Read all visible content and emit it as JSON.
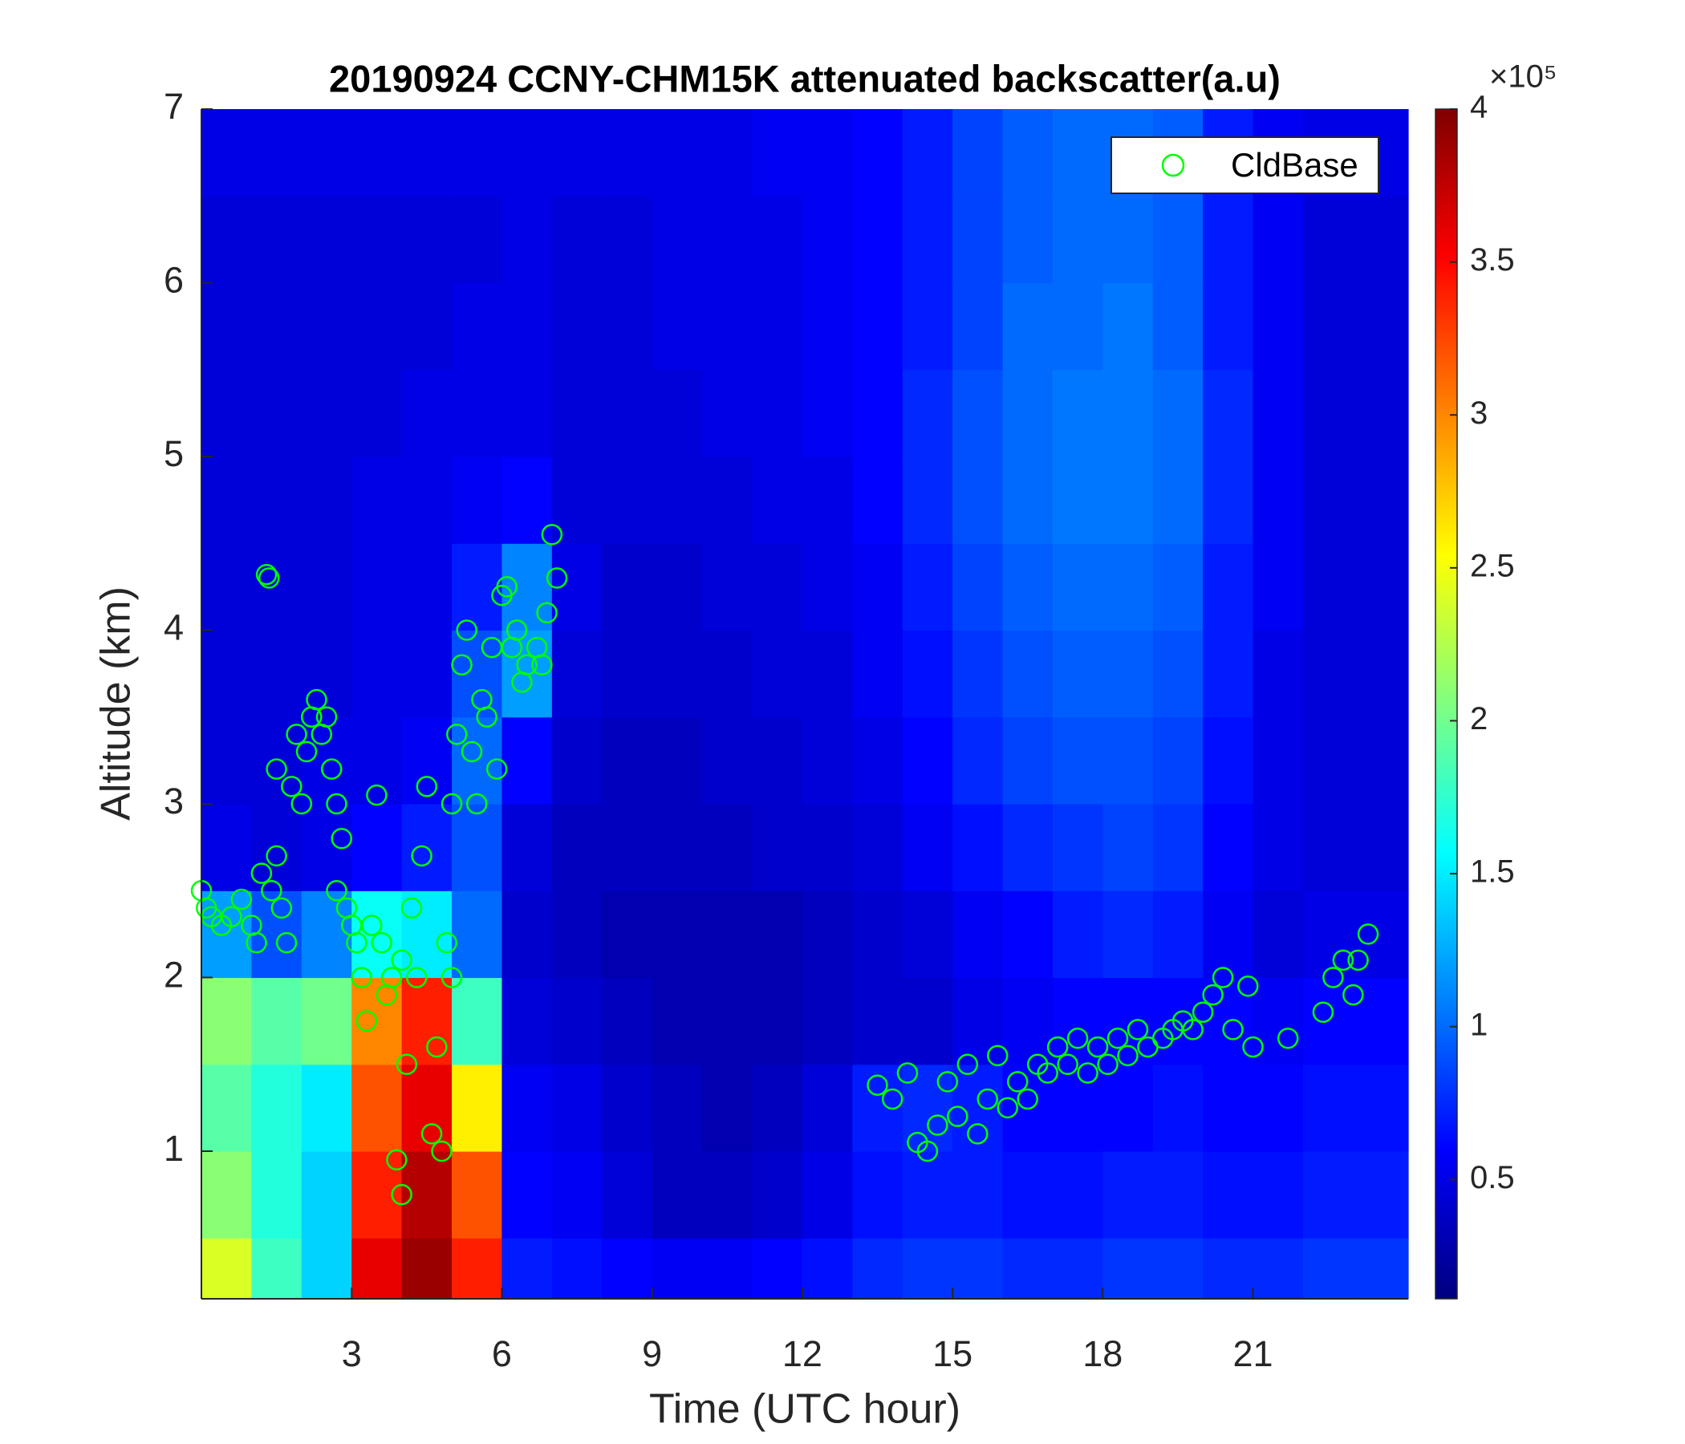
{
  "chart_data": {
    "type": "heatmap",
    "title": "20190924 CCNY-CHM15K attenuated backscatter(a.u)",
    "x_label": "Time (UTC hour)",
    "y_label": "Altitude (km)",
    "xlim": [
      0,
      24.1
    ],
    "ylim": [
      0.15,
      7
    ],
    "xticks": [
      3,
      6,
      9,
      12,
      15,
      18,
      21
    ],
    "yticks": [
      1,
      2,
      3,
      4,
      5,
      6,
      7
    ],
    "heatmap": {
      "x_bins": [
        0,
        1,
        2,
        3,
        4,
        5,
        6,
        7,
        8,
        9,
        10,
        11,
        12,
        13,
        14,
        15,
        16,
        17,
        18,
        19,
        20,
        21,
        22,
        23,
        24.1
      ],
      "y_bins": [
        0.15,
        0.5,
        1,
        1.5,
        2,
        2.5,
        3,
        3.5,
        4,
        4.5,
        5,
        5.5,
        6,
        6.5,
        7
      ],
      "values": [
        [
          2.4,
          1.8,
          1.4,
          3.6,
          3.9,
          3.4,
          0.7,
          0.65,
          0.6,
          0.55,
          0.55,
          0.6,
          0.65,
          0.75,
          0.8,
          0.8,
          0.75,
          0.75,
          0.8,
          0.8,
          0.75,
          0.75,
          0.8,
          0.8
        ],
        [
          2.1,
          1.7,
          1.4,
          3.4,
          3.8,
          3.2,
          0.6,
          0.55,
          0.45,
          0.35,
          0.35,
          0.4,
          0.5,
          0.65,
          0.7,
          0.7,
          0.65,
          0.65,
          0.7,
          0.7,
          0.65,
          0.65,
          0.7,
          0.7
        ],
        [
          1.9,
          1.7,
          1.5,
          3.2,
          3.6,
          2.6,
          0.55,
          0.5,
          0.4,
          0.35,
          0.3,
          0.35,
          0.45,
          0.7,
          0.75,
          0.7,
          0.6,
          0.6,
          0.6,
          0.65,
          0.6,
          0.6,
          0.65,
          0.65
        ],
        [
          2.1,
          1.9,
          2.0,
          3.0,
          3.4,
          1.8,
          0.45,
          0.4,
          0.35,
          0.3,
          0.3,
          0.3,
          0.35,
          0.4,
          0.4,
          0.5,
          0.55,
          0.6,
          0.6,
          0.6,
          0.6,
          0.55,
          0.6,
          0.6
        ],
        [
          1.2,
          0.9,
          1.1,
          1.6,
          1.5,
          1.0,
          0.4,
          0.35,
          0.3,
          0.3,
          0.3,
          0.3,
          0.35,
          0.4,
          0.45,
          0.55,
          0.6,
          0.7,
          0.75,
          0.7,
          0.55,
          0.45,
          0.5,
          0.5
        ],
        [
          0.5,
          0.45,
          0.5,
          0.6,
          0.7,
          0.9,
          0.45,
          0.35,
          0.35,
          0.35,
          0.35,
          0.4,
          0.4,
          0.45,
          0.55,
          0.65,
          0.75,
          0.8,
          0.85,
          0.8,
          0.6,
          0.5,
          0.45,
          0.45
        ],
        [
          0.45,
          0.45,
          0.5,
          0.5,
          0.55,
          1.0,
          0.6,
          0.4,
          0.35,
          0.35,
          0.4,
          0.4,
          0.45,
          0.5,
          0.6,
          0.75,
          0.85,
          0.9,
          0.9,
          0.85,
          0.65,
          0.5,
          0.45,
          0.45
        ],
        [
          0.45,
          0.45,
          0.45,
          0.5,
          0.5,
          0.9,
          1.2,
          0.45,
          0.4,
          0.4,
          0.4,
          0.45,
          0.45,
          0.55,
          0.65,
          0.8,
          0.9,
          0.95,
          0.95,
          0.9,
          0.7,
          0.5,
          0.45,
          0.45
        ],
        [
          0.45,
          0.45,
          0.45,
          0.5,
          0.5,
          0.7,
          1.1,
          0.5,
          0.4,
          0.4,
          0.45,
          0.45,
          0.5,
          0.55,
          0.7,
          0.85,
          0.95,
          1.0,
          1.0,
          0.95,
          0.7,
          0.55,
          0.45,
          0.45
        ],
        [
          0.45,
          0.45,
          0.45,
          0.5,
          0.5,
          0.55,
          0.6,
          0.45,
          0.45,
          0.45,
          0.45,
          0.5,
          0.5,
          0.6,
          0.75,
          0.9,
          1.0,
          1.05,
          1.05,
          1.0,
          0.75,
          0.55,
          0.45,
          0.45
        ],
        [
          0.45,
          0.45,
          0.45,
          0.45,
          0.5,
          0.5,
          0.5,
          0.45,
          0.45,
          0.45,
          0.5,
          0.5,
          0.55,
          0.6,
          0.75,
          0.9,
          1.0,
          1.05,
          1.05,
          1.0,
          0.75,
          0.55,
          0.45,
          0.45
        ],
        [
          0.45,
          0.45,
          0.45,
          0.45,
          0.45,
          0.5,
          0.5,
          0.45,
          0.45,
          0.5,
          0.5,
          0.5,
          0.55,
          0.6,
          0.7,
          0.85,
          1.0,
          1.0,
          1.05,
          0.95,
          0.7,
          0.55,
          0.45,
          0.45
        ],
        [
          0.45,
          0.45,
          0.45,
          0.45,
          0.45,
          0.45,
          0.5,
          0.45,
          0.45,
          0.5,
          0.5,
          0.5,
          0.55,
          0.6,
          0.7,
          0.85,
          0.95,
          1.0,
          1.0,
          0.95,
          0.7,
          0.55,
          0.45,
          0.45
        ],
        [
          0.5,
          0.5,
          0.5,
          0.5,
          0.5,
          0.5,
          0.5,
          0.5,
          0.5,
          0.5,
          0.5,
          0.55,
          0.55,
          0.6,
          0.7,
          0.85,
          0.95,
          1.0,
          1.0,
          0.95,
          0.7,
          0.55,
          0.5,
          0.5
        ]
      ]
    },
    "colorbar": {
      "colormap": "jet",
      "clim": [
        0.11,
        4
      ],
      "ticks": [
        0.5,
        1,
        1.5,
        2,
        2.5,
        3,
        3.5,
        4
      ],
      "exponent_label": "×10⁵"
    },
    "legend": "northeast",
    "series": [
      {
        "name": "CldBase",
        "type": "scatter",
        "color": "#00ff00",
        "x": [
          0.0,
          0.1,
          0.2,
          0.4,
          0.6,
          0.8,
          1.0,
          1.1,
          1.3,
          1.35,
          1.2,
          1.4,
          1.5,
          1.6,
          1.5,
          1.7,
          1.8,
          1.9,
          2.0,
          2.1,
          2.2,
          2.3,
          2.4,
          2.5,
          2.6,
          2.7,
          2.7,
          2.8,
          2.9,
          3.0,
          3.1,
          3.2,
          3.3,
          3.4,
          3.5,
          3.6,
          3.7,
          3.8,
          3.9,
          4.0,
          4.0,
          4.1,
          4.2,
          4.3,
          4.4,
          4.5,
          4.6,
          4.7,
          4.8,
          4.9,
          5.0,
          5.0,
          5.1,
          5.2,
          5.3,
          5.4,
          5.5,
          5.6,
          5.7,
          5.8,
          5.9,
          6.0,
          6.1,
          6.2,
          6.3,
          6.4,
          6.5,
          6.7,
          6.8,
          6.9,
          7.0,
          7.1,
          13.5,
          13.8,
          14.1,
          14.3,
          14.5,
          14.7,
          14.9,
          15.1,
          15.3,
          15.5,
          15.7,
          15.9,
          16.1,
          16.3,
          16.5,
          16.7,
          16.9,
          17.1,
          17.3,
          17.5,
          17.7,
          17.9,
          18.1,
          18.3,
          18.5,
          18.7,
          18.9,
          19.2,
          19.4,
          19.6,
          19.8,
          20.0,
          20.2,
          20.4,
          20.6,
          20.9,
          21.0,
          21.7,
          22.4,
          22.6,
          22.8,
          23.0,
          23.1,
          23.3
        ],
        "values": [
          2.5,
          2.4,
          2.35,
          2.3,
          2.35,
          2.45,
          2.3,
          2.2,
          4.32,
          4.3,
          2.6,
          2.5,
          2.7,
          2.4,
          3.2,
          2.2,
          3.1,
          3.4,
          3.0,
          3.3,
          3.5,
          3.6,
          3.4,
          3.5,
          3.2,
          3.0,
          2.5,
          2.8,
          2.4,
          2.3,
          2.2,
          2.0,
          1.75,
          2.3,
          3.05,
          2.2,
          1.9,
          2.0,
          0.95,
          0.75,
          2.1,
          1.5,
          2.4,
          2.0,
          2.7,
          3.1,
          1.1,
          1.6,
          1.0,
          2.2,
          2.0,
          3.0,
          3.4,
          3.8,
          4.0,
          3.3,
          3.0,
          3.6,
          3.5,
          3.9,
          3.2,
          4.2,
          4.25,
          3.9,
          4.0,
          3.7,
          3.8,
          3.9,
          3.8,
          4.1,
          4.55,
          4.3,
          1.38,
          1.3,
          1.45,
          1.05,
          1.0,
          1.15,
          1.4,
          1.2,
          1.5,
          1.1,
          1.3,
          1.55,
          1.25,
          1.4,
          1.3,
          1.5,
          1.45,
          1.6,
          1.5,
          1.65,
          1.45,
          1.6,
          1.5,
          1.65,
          1.55,
          1.7,
          1.6,
          1.65,
          1.7,
          1.75,
          1.7,
          1.8,
          1.9,
          2.0,
          1.7,
          1.95,
          1.6,
          1.65,
          1.8,
          2.0,
          2.1,
          1.9,
          2.1,
          2.25
        ]
      }
    ]
  }
}
